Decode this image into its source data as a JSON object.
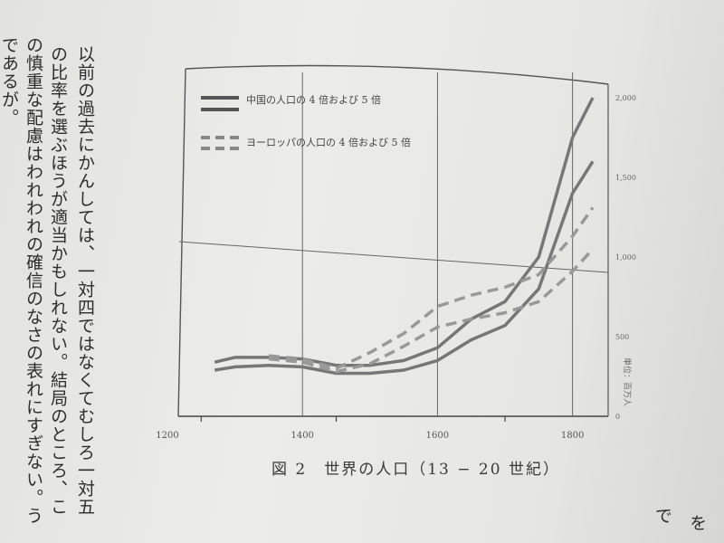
{
  "body_text": {
    "columns": [
      "以前の過去にかんしては、一対四ではなくてむしろ一対五",
      "の比率を選ぶほうが適当かもしれない。結局のところ、こ",
      "の慎重な配慮はわれわれの確信のなさの表れにすぎない。う",
      "であるが。"
    ],
    "right_fragments": [
      "で",
      "を"
    ]
  },
  "chart_data": {
    "type": "line",
    "caption": "図 2　世界の人口（13 − 20 世紀）",
    "x_ticks": [
      "1200",
      "1400",
      "1600",
      "1800"
    ],
    "y_ticks": [
      "0",
      "500",
      "1,000",
      "1,500",
      "2,000"
    ],
    "ylabel": "単位：百万人",
    "xlim": [
      1200,
      1830
    ],
    "ylim": [
      0,
      2000
    ],
    "legend": [
      {
        "label": "中国の人口の 4 倍および 5 倍",
        "style": "solid"
      },
      {
        "label": "ヨーロッパの人口の 4 倍および 5 倍",
        "style": "dashed"
      }
    ],
    "series": [
      {
        "style": "solid",
        "points": [
          [
            1270,
            340
          ],
          [
            1300,
            370
          ],
          [
            1350,
            370
          ],
          [
            1400,
            360
          ],
          [
            1450,
            320
          ],
          [
            1500,
            320
          ],
          [
            1550,
            350
          ],
          [
            1600,
            430
          ],
          [
            1650,
            610
          ],
          [
            1700,
            720
          ],
          [
            1750,
            1000
          ],
          [
            1800,
            1750
          ],
          [
            1830,
            2000
          ]
        ]
      },
      {
        "style": "solid",
        "points": [
          [
            1270,
            290
          ],
          [
            1300,
            310
          ],
          [
            1350,
            320
          ],
          [
            1400,
            310
          ],
          [
            1450,
            270
          ],
          [
            1500,
            270
          ],
          [
            1550,
            290
          ],
          [
            1600,
            350
          ],
          [
            1650,
            480
          ],
          [
            1700,
            570
          ],
          [
            1750,
            800
          ],
          [
            1800,
            1400
          ],
          [
            1830,
            1600
          ]
        ]
      },
      {
        "style": "dashed",
        "points": [
          [
            1350,
            380
          ],
          [
            1400,
            360
          ],
          [
            1450,
            300
          ],
          [
            1500,
            400
          ],
          [
            1550,
            520
          ],
          [
            1600,
            690
          ],
          [
            1650,
            760
          ],
          [
            1700,
            810
          ],
          [
            1750,
            890
          ],
          [
            1800,
            1130
          ],
          [
            1830,
            1310
          ]
        ]
      },
      {
        "style": "dashed",
        "points": [
          [
            1350,
            360
          ],
          [
            1400,
            340
          ],
          [
            1450,
            280
          ],
          [
            1500,
            330
          ],
          [
            1550,
            440
          ],
          [
            1600,
            560
          ],
          [
            1650,
            610
          ],
          [
            1700,
            650
          ],
          [
            1750,
            720
          ],
          [
            1800,
            910
          ],
          [
            1830,
            1050
          ]
        ]
      }
    ]
  }
}
